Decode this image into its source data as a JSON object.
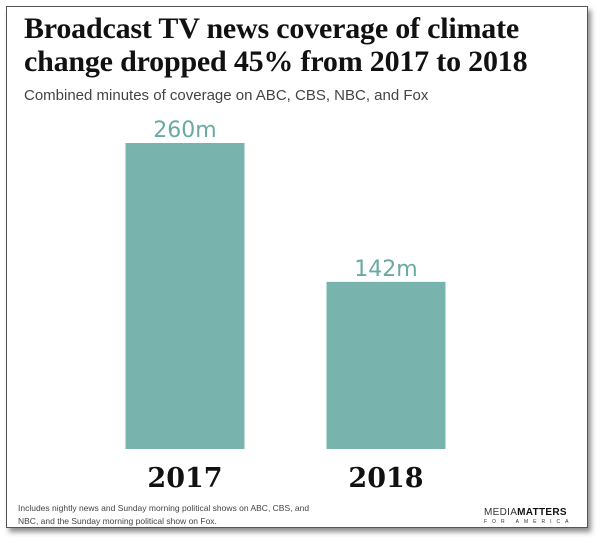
{
  "chart_data": {
    "type": "bar",
    "title": "Broadcast TV news coverage of climate change dropped 45% from 2017 to 2018",
    "subtitle": "Combined minutes of coverage on ABC, CBS, NBC, and Fox",
    "categories": [
      "2017",
      "2018"
    ],
    "values": [
      260,
      142
    ],
    "data_labels": [
      "260m",
      "142m"
    ],
    "unit": "minutes",
    "xlabel": "",
    "ylabel": "",
    "ylim": [
      0,
      260
    ],
    "grid": false,
    "bar_color": "#78b3ae",
    "label_color": "#6aaaa4"
  },
  "footnote": "Includes nightly news and Sunday morning political shows on ABC, CBS, and NBC, and the Sunday morning political show on Fox.",
  "logo": {
    "part1": "MEDIA",
    "part2": "MATTERS",
    "sub": "FOR AMERICA"
  }
}
